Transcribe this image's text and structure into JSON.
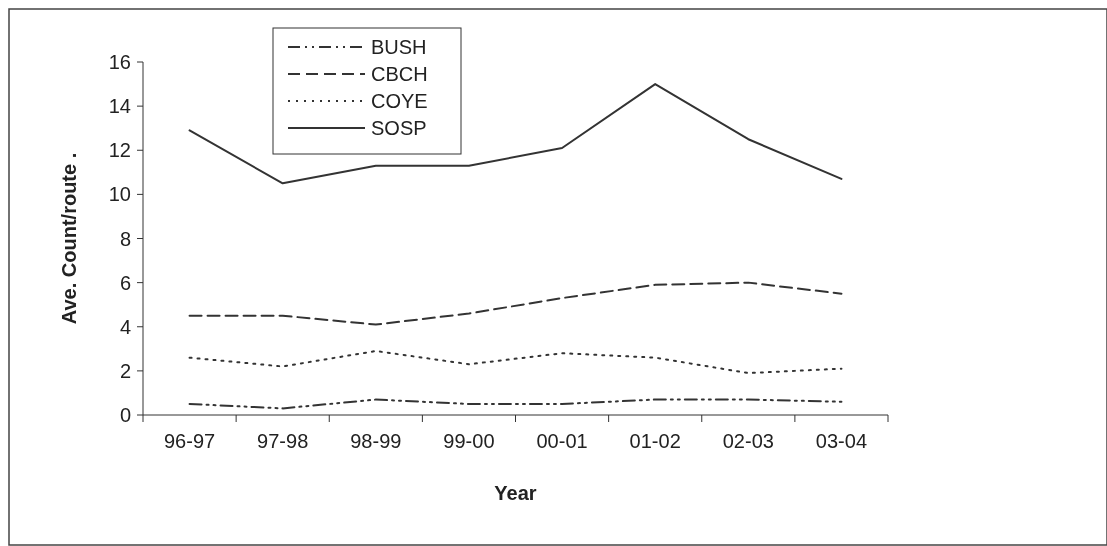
{
  "chart_data": {
    "type": "line",
    "xlabel": "Year",
    "ylabel": "Ave. Count/route .",
    "categories": [
      "96-97",
      "97-98",
      "98-99",
      "99-00",
      "00-01",
      "01-02",
      "02-03",
      "03-04"
    ],
    "ylim": [
      0,
      16
    ],
    "yticks": [
      0,
      2,
      4,
      6,
      8,
      10,
      12,
      14,
      16
    ],
    "grid": false,
    "legend": "top",
    "marker": "none",
    "series": [
      {
        "name": "BUSH",
        "color": "#333333",
        "line_style": "dashdot",
        "values": [
          0.5,
          0.3,
          0.7,
          0.5,
          0.5,
          0.7,
          0.7,
          0.6
        ]
      },
      {
        "name": "CBCH",
        "color": "#333333",
        "line_style": "dashed",
        "values": [
          4.5,
          4.5,
          4.1,
          4.6,
          5.3,
          5.9,
          6.0,
          5.5
        ]
      },
      {
        "name": "COYE",
        "color": "#333333",
        "line_style": "dotted",
        "values": [
          2.6,
          2.2,
          2.9,
          2.3,
          2.8,
          2.6,
          1.9,
          2.1
        ]
      },
      {
        "name": "SOSP",
        "color": "#333333",
        "line_style": "solid",
        "values": [
          12.9,
          10.5,
          11.3,
          11.3,
          12.1,
          15.0,
          12.5,
          10.7
        ]
      }
    ]
  }
}
